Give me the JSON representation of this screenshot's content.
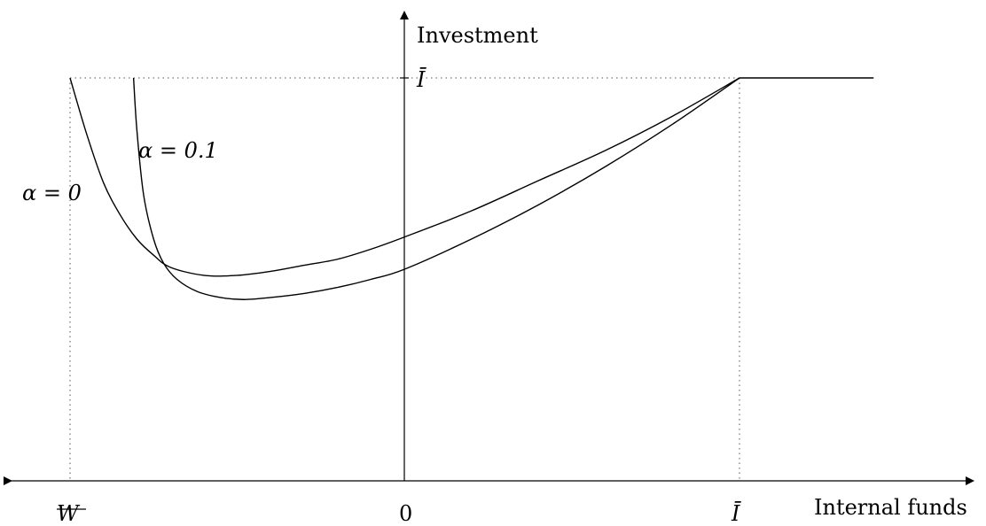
{
  "chart_data": {
    "type": "line",
    "ylabel": "Investment",
    "xlabel": "Internal funds",
    "x_tick_labels": {
      "left": "W",
      "zero": "0",
      "right": "Ī"
    },
    "y_tick_labels": {
      "top": "Ī"
    },
    "series": [
      {
        "name": "α = 0",
        "label": "α = 0",
        "x": [
          -1.0,
          -0.95,
          -0.9,
          -0.85,
          -0.8,
          -0.75,
          -0.7,
          -0.6,
          -0.5,
          -0.4,
          -0.3,
          -0.2,
          -0.1,
          0.0,
          0.2,
          0.4,
          0.6,
          0.8,
          1.0
        ],
        "y": [
          1.0,
          0.86,
          0.74,
          0.66,
          0.6,
          0.56,
          0.53,
          0.51,
          0.51,
          0.52,
          0.535,
          0.55,
          0.575,
          0.605,
          0.67,
          0.745,
          0.82,
          0.905,
          1.0
        ]
      },
      {
        "name": "α = 0.1",
        "label": "α = 0.1",
        "x": [
          -0.81,
          -0.8,
          -0.78,
          -0.75,
          -0.72,
          -0.68,
          -0.62,
          -0.55,
          -0.48,
          -0.4,
          -0.3,
          -0.2,
          -0.1,
          0.0,
          0.2,
          0.4,
          0.6,
          0.8,
          1.0
        ],
        "y": [
          1.0,
          0.87,
          0.71,
          0.6,
          0.54,
          0.5,
          0.47,
          0.455,
          0.45,
          0.455,
          0.465,
          0.48,
          0.5,
          0.525,
          0.6,
          0.685,
          0.78,
          0.885,
          1.0
        ]
      },
      {
        "name": "",
        "x": [
          1.0,
          1.4
        ],
        "y": [
          1.0,
          1.0
        ]
      }
    ],
    "xlim": [
      -1.15,
      1.5
    ],
    "ylim": [
      0,
      1.3
    ],
    "grid": false,
    "legend": "none"
  }
}
